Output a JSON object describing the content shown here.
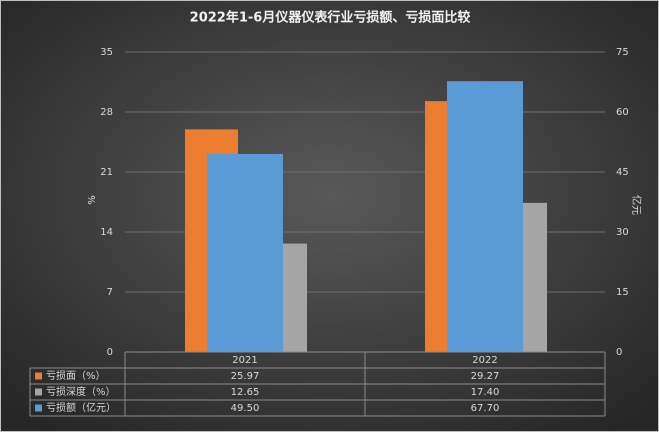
{
  "chart_data": {
    "type": "bar",
    "title": "2022年1-6月仪器仪表行业亏损额、亏损面比较",
    "categories": [
      "2021",
      "2022"
    ],
    "ylabel": "%",
    "y2label": "亿元",
    "ylim": [
      0,
      35
    ],
    "yticks": [
      0,
      7,
      14,
      21,
      28,
      35
    ],
    "y2lim": [
      0,
      75
    ],
    "y2ticks": [
      0,
      15,
      30,
      45,
      60,
      75
    ],
    "grid": true,
    "series": [
      {
        "name": "亏损面（%）",
        "color": "#ed7d31",
        "values": [
          25.97,
          29.27
        ],
        "value_labels": [
          "25.97",
          "29.27"
        ]
      },
      {
        "name": "亏损深度（%）",
        "color": "#a5a5a5",
        "values": [
          12.65,
          17.4
        ],
        "value_labels": [
          "12.65",
          "17.40"
        ]
      },
      {
        "name": "亏损额（亿元）",
        "color": "#5b9bd5",
        "values": [
          49.5,
          67.7
        ],
        "value_labels": [
          "49.50",
          "67.70"
        ],
        "axis": "y2"
      }
    ]
  }
}
